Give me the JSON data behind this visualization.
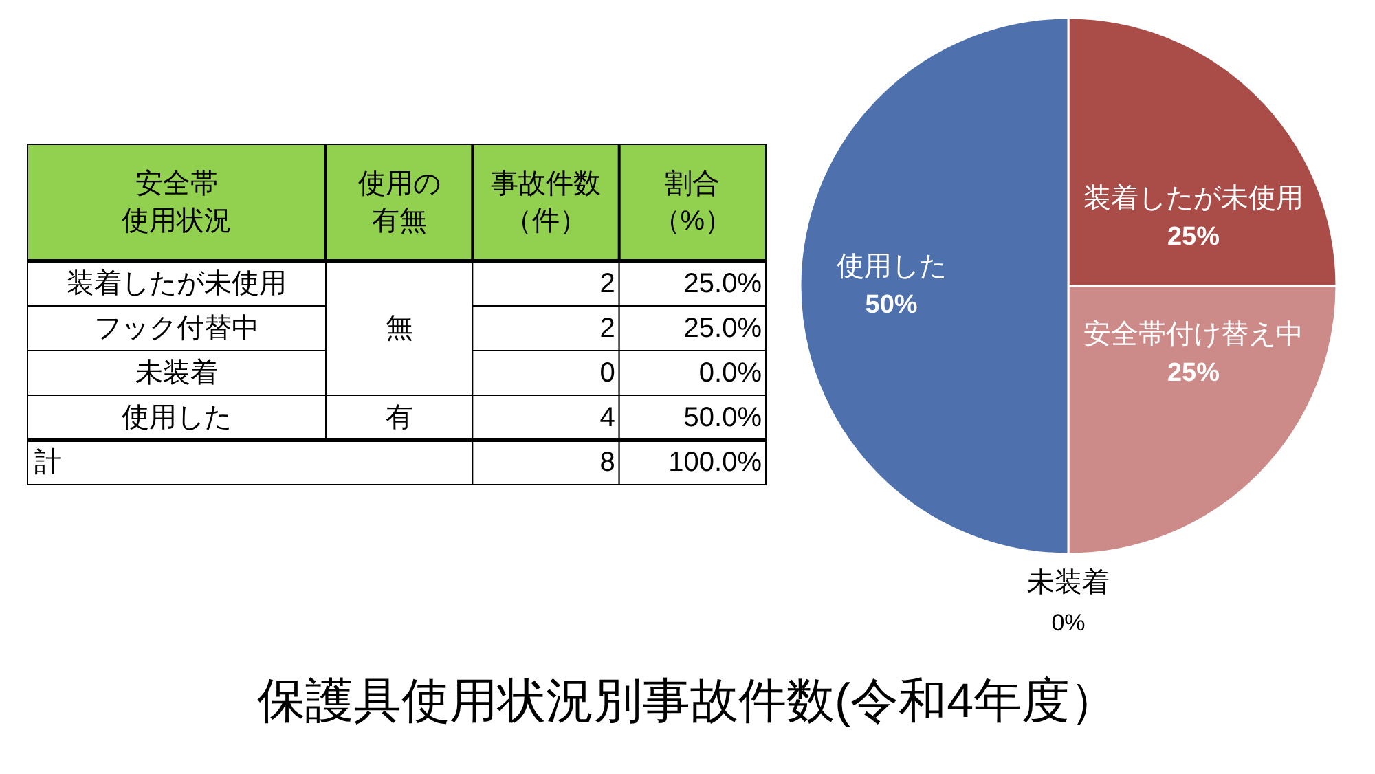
{
  "chart_data": [
    {
      "type": "other",
      "title": "保護具使用状況別事故件数(令和4年度）",
      "ylabel": "安全帯使用状況",
      "categories": [
        "使用の有無",
        "事故件数（件）",
        "割合（%）"
      ],
      "y_categories": [
        "装着したが未使用",
        "フック付替中",
        "未装着",
        "使用した",
        "計"
      ],
      "cell_labels": [
        [
          "無",
          "2",
          "25.0%"
        ],
        [
          null,
          "2",
          "25.0%"
        ],
        [
          null,
          "0",
          "0.0%"
        ],
        [
          "有",
          "4",
          "50.0%"
        ],
        [
          null,
          "8",
          "100.0%"
        ]
      ]
    },
    {
      "type": "pie",
      "categories": [
        "装着したが未使用",
        "安全帯付け替え中",
        "未装着",
        "使用した"
      ],
      "values": [
        25,
        25,
        0,
        50
      ],
      "value_labels": [
        "25%",
        "25%",
        "0%",
        "50%"
      ],
      "colors": [
        "#aa4c47",
        "#cc8b88",
        null,
        "#4e71ae"
      ]
    }
  ]
}
